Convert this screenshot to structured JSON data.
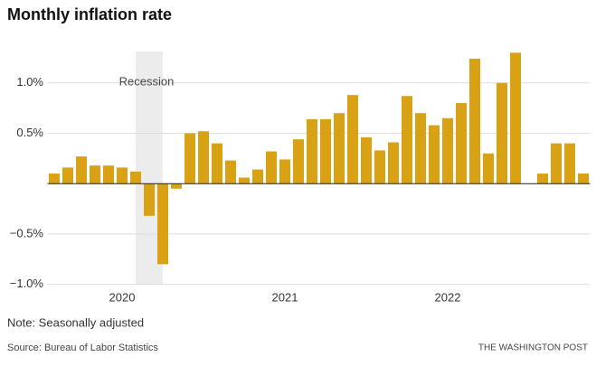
{
  "chart_data": {
    "type": "bar",
    "title": "Monthly inflation rate",
    "note": "Note: Seasonally adjusted",
    "source": "Source: Bureau of Labor Statistics",
    "credit": "THE WASHINGTON POST",
    "annotation": "Recession",
    "categories": [
      null,
      null,
      null,
      null,
      null,
      "2020",
      null,
      null,
      null,
      null,
      null,
      null,
      null,
      null,
      null,
      null,
      null,
      "2021",
      null,
      null,
      null,
      null,
      null,
      null,
      null,
      null,
      null,
      null,
      null,
      "2022",
      null,
      null,
      null,
      null,
      null,
      null,
      null,
      null,
      null,
      null
    ],
    "values": [
      0.1,
      0.16,
      0.27,
      0.18,
      0.18,
      0.16,
      0.12,
      -0.32,
      -0.8,
      -0.05,
      0.5,
      0.52,
      0.4,
      0.23,
      0.06,
      0.14,
      0.32,
      0.24,
      0.44,
      0.64,
      0.64,
      0.7,
      0.88,
      0.46,
      0.33,
      0.41,
      0.87,
      0.7,
      0.58,
      0.65,
      0.8,
      1.24,
      0.3,
      1.0,
      1.3,
      0,
      0.1,
      0.4,
      0.4,
      0.1
    ],
    "color": "#d9a214",
    "ylim": [
      -1.03,
      1.33
    ],
    "yticks": [
      {
        "value": -1.0,
        "label": "−1.0%"
      },
      {
        "value": -0.5,
        "label": "−0.5%"
      },
      {
        "value": 0.5,
        "label": "0.5%"
      },
      {
        "value": 1.0,
        "label": "1.0%"
      }
    ],
    "grid": true
  }
}
